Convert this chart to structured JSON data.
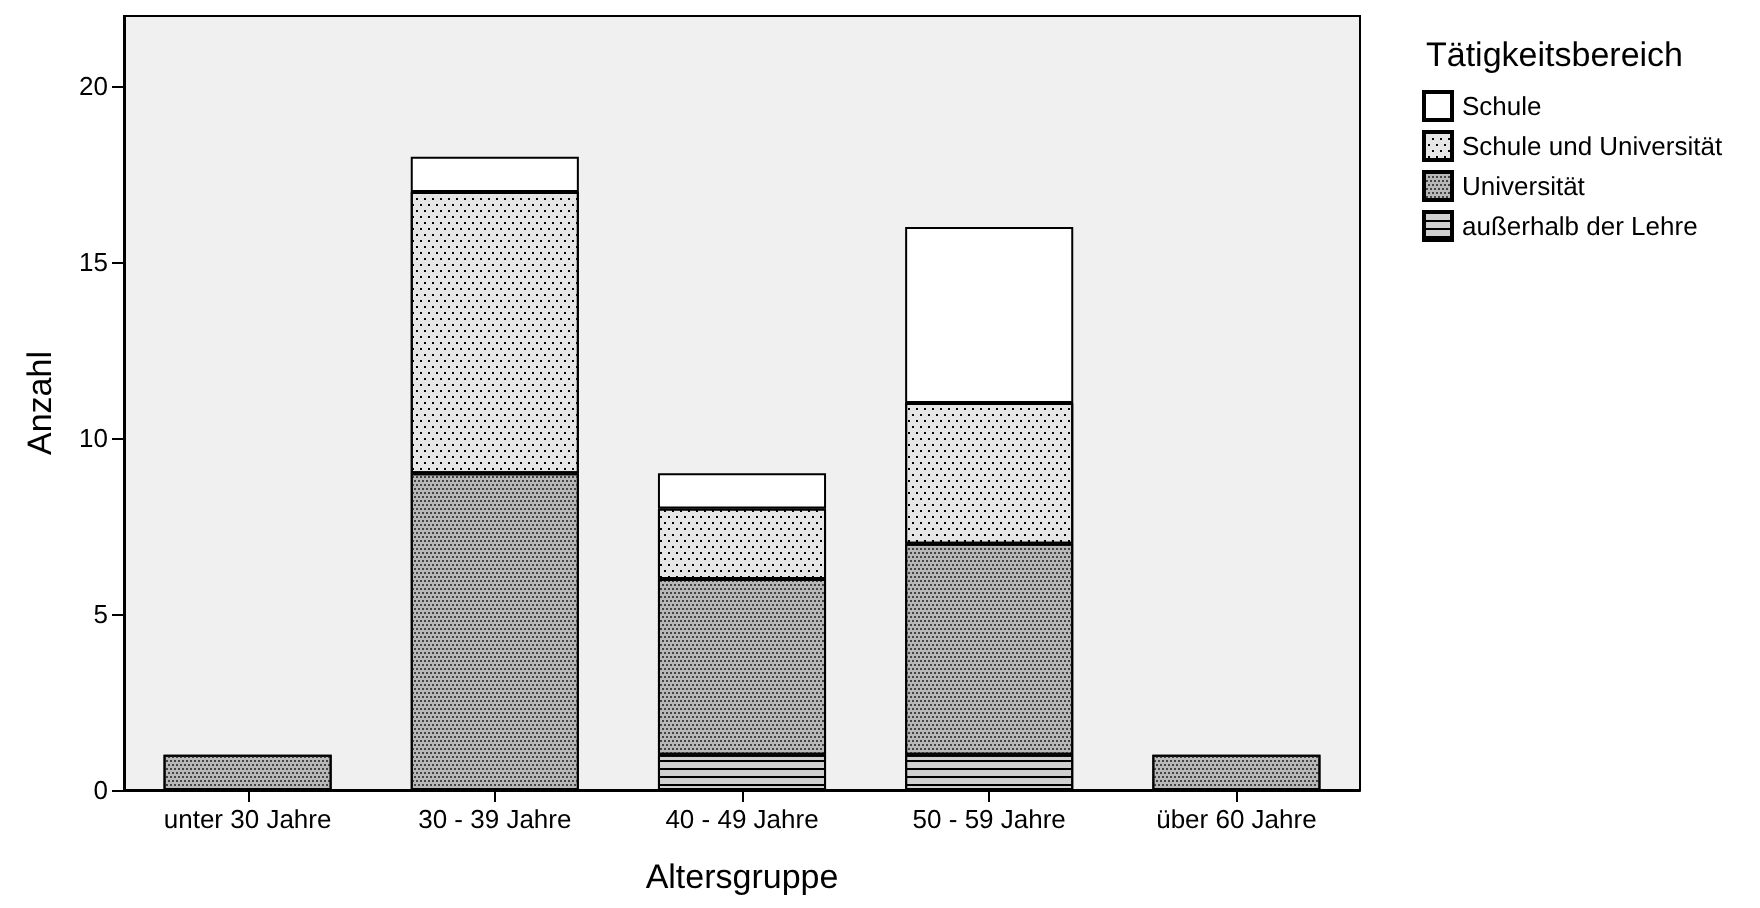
{
  "chart_data": {
    "type": "bar",
    "stacked": true,
    "xlabel": "Altersgruppe",
    "ylabel": "Anzahl",
    "legend_title": "Tätigkeitsbereich",
    "categories": [
      "unter 30 Jahre",
      "30 - 39 Jahre",
      "40 - 49 Jahre",
      "50 - 59 Jahre",
      "über 60 Jahre"
    ],
    "series": [
      {
        "name": "außerhalb der Lehre",
        "color": "#d0d0d0",
        "values": [
          0,
          0,
          1,
          1,
          0
        ]
      },
      {
        "name": "Universität",
        "color": "#b8b8b8",
        "values": [
          1,
          9,
          5,
          6,
          1
        ]
      },
      {
        "name": "Schule und Universität",
        "color": "#e6e6e6",
        "values": [
          0,
          8,
          2,
          4,
          0
        ]
      },
      {
        "name": "Schule",
        "color": "#ffffff",
        "values": [
          0,
          1,
          1,
          5,
          0
        ]
      }
    ],
    "ylim": [
      0,
      22
    ],
    "yticks": [
      0,
      5,
      10,
      15,
      20
    ],
    "grid": false,
    "legend": "top right"
  }
}
